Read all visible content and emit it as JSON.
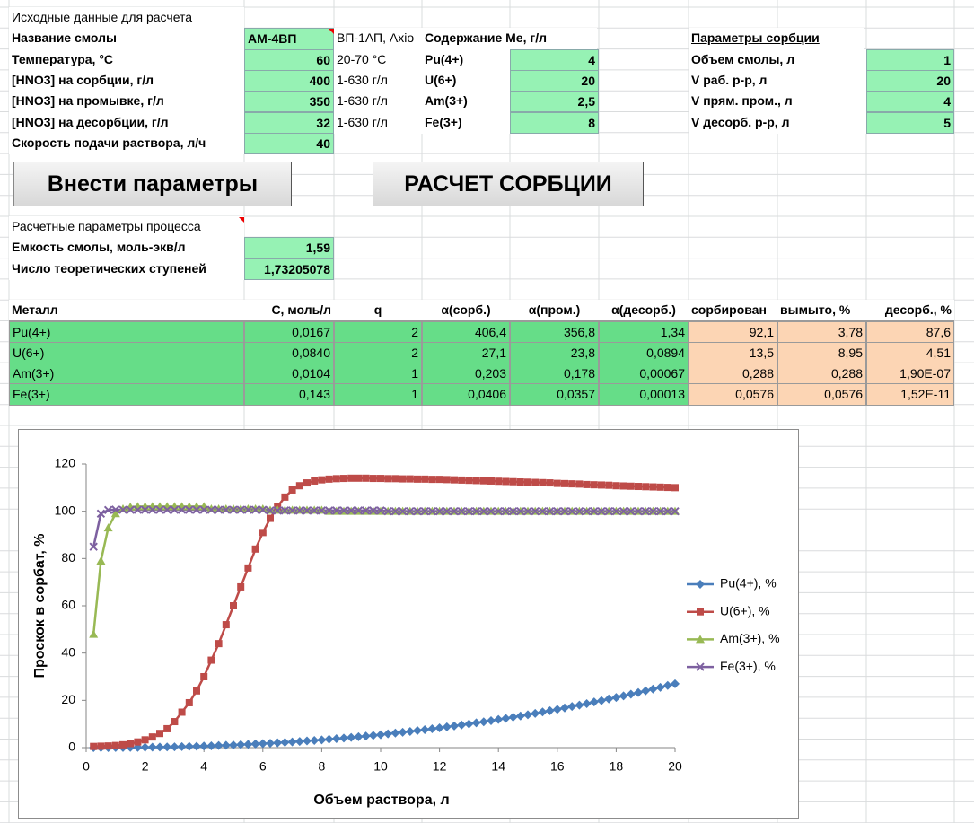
{
  "input": {
    "title": "Исходные данные для расчета",
    "rows": [
      {
        "label": "Название смолы",
        "value": "АМ-4ВП",
        "note": "ВП-1АП, Axio"
      },
      {
        "label": "Температура, °C",
        "value": "60",
        "note": "20-70 °C"
      },
      {
        "label": "[HNO3] на сорбции, г/л",
        "value": "400",
        "note": "1-630 г/л"
      },
      {
        "label": "[HNO3] на промывке, г/л",
        "value": "350",
        "note": "1-630 г/л"
      },
      {
        "label": "[HNO3] на десорбции, г/л",
        "value": "32",
        "note": "1-630 г/л"
      },
      {
        "label": "Скорость подачи раствора, л/ч",
        "value": "40"
      }
    ]
  },
  "content": {
    "title": "Содержание Me, г/л",
    "rows": [
      {
        "label": "Pu(4+)",
        "value": "4"
      },
      {
        "label": "U(6+)",
        "value": "20"
      },
      {
        "label": "Am(3+)",
        "value": "2,5"
      },
      {
        "label": "Fe(3+)",
        "value": "8"
      }
    ]
  },
  "sorption": {
    "title": "Параметры сорбции",
    "rows": [
      {
        "label": "Объем смолы, л",
        "value": "1"
      },
      {
        "label": "V раб. р-р, л",
        "value": "20"
      },
      {
        "label": "V прям. пром., л",
        "value": "4"
      },
      {
        "label": "V десорб. р-р, л",
        "value": "5"
      }
    ]
  },
  "buttons": [
    "Внести параметры",
    "РАСЧЕТ СОРБЦИИ"
  ],
  "calc": {
    "title": "Расчетные параметры процесса",
    "rows": [
      {
        "label": "Емкость смолы, моль-экв/л",
        "value": "1,59"
      },
      {
        "label": "Число теоретических ступеней",
        "value": "1,73205078"
      }
    ]
  },
  "table": {
    "headers": [
      "Металл",
      "С, моль/л",
      "q",
      "α(сорб.)",
      "α(пром.)",
      "α(десорб.)",
      "сорбирован",
      "вымыто, %",
      "десорб., %"
    ],
    "rows": [
      [
        "Pu(4+)",
        "0,0167",
        "2",
        "406,4",
        "356,8",
        "1,34",
        "92,1",
        "3,78",
        "87,6"
      ],
      [
        "U(6+)",
        "0,0840",
        "2",
        "27,1",
        "23,8",
        "0,0894",
        "13,5",
        "8,95",
        "4,51"
      ],
      [
        "Am(3+)",
        "0,0104",
        "1",
        "0,203",
        "0,178",
        "0,00067",
        "0,288",
        "0,288",
        "1,90E-07"
      ],
      [
        "Fe(3+)",
        "0,143",
        "1",
        "0,0406",
        "0,0357",
        "0,00013",
        "0,0576",
        "0,0576",
        "1,52E-11"
      ]
    ]
  },
  "chart_data": {
    "type": "line",
    "x_label": "Объем раствора, л",
    "y_label": "Проскок в сорбат, %",
    "xlim": [
      0,
      20
    ],
    "xticks": [
      0,
      2,
      4,
      6,
      8,
      10,
      12,
      14,
      16,
      18,
      20
    ],
    "ylim": [
      0,
      120
    ],
    "yticks": [
      0,
      20,
      40,
      60,
      80,
      100,
      120
    ],
    "grid": false,
    "legend": "right",
    "x": [
      0.25,
      0.5,
      0.75,
      1,
      1.25,
      1.5,
      1.75,
      2,
      2.25,
      2.5,
      2.75,
      3,
      3.25,
      3.5,
      3.75,
      4,
      4.25,
      4.5,
      4.75,
      5,
      5.25,
      5.5,
      5.75,
      6,
      6.25,
      6.5,
      6.75,
      7,
      7.25,
      7.5,
      7.75,
      8,
      8.25,
      8.5,
      8.75,
      9,
      9.25,
      9.5,
      9.75,
      10,
      10.25,
      10.5,
      10.75,
      11,
      11.25,
      11.5,
      11.75,
      12,
      12.25,
      12.5,
      12.75,
      13,
      13.25,
      13.5,
      13.75,
      14,
      14.25,
      14.5,
      14.75,
      15,
      15.25,
      15.5,
      15.75,
      16,
      16.25,
      16.5,
      16.75,
      17,
      17.25,
      17.5,
      17.75,
      18,
      18.25,
      18.5,
      18.75,
      19,
      19.25,
      19.5,
      19.75,
      20
    ],
    "series": [
      {
        "name": "Pu(4+), %",
        "color": "#4a7ebb",
        "marker": "diamond",
        "values": [
          0,
          0.01,
          0.02,
          0.03,
          0.05,
          0.08,
          0.11,
          0.14,
          0.19,
          0.24,
          0.29,
          0.34,
          0.42,
          0.5,
          0.59,
          0.67,
          0.78,
          0.89,
          1,
          1.11,
          1.26,
          1.4,
          1.55,
          1.69,
          1.87,
          2.05,
          2.23,
          2.41,
          2.63,
          2.85,
          3.06,
          3.28,
          3.54,
          3.79,
          4.05,
          4.3,
          4.6,
          4.89,
          5.19,
          5.48,
          5.82,
          6.16,
          6.49,
          6.83,
          7.21,
          7.59,
          7.96,
          8.34,
          8.76,
          9.17,
          9.59,
          10,
          10.5,
          10.9,
          11.4,
          11.9,
          12.4,
          12.9,
          13.4,
          13.9,
          14.5,
          15.1,
          15.6,
          16.2,
          16.8,
          17.4,
          18,
          18.6,
          19.3,
          19.9,
          20.6,
          21.2,
          21.9,
          22.6,
          23.3,
          24,
          24.8,
          25.5,
          26.3,
          27
        ]
      },
      {
        "name": "U(6+), %",
        "color": "#be4b48",
        "marker": "square",
        "values": [
          0.5,
          0.6,
          0.7,
          0.9,
          1.2,
          1.7,
          2.4,
          3.3,
          4.5,
          6,
          8,
          11,
          15,
          19,
          24,
          30,
          37,
          44,
          52,
          60,
          68,
          76,
          84,
          91,
          97,
          102,
          106,
          109,
          110.8,
          112,
          112.8,
          113.3,
          113.6,
          113.8,
          113.9,
          114,
          114,
          114,
          113.9,
          113.9,
          113.8,
          113.8,
          113.7,
          113.7,
          113.6,
          113.6,
          113.5,
          113.5,
          113.4,
          113.3,
          113.2,
          113.1,
          113,
          112.9,
          112.8,
          112.7,
          112.6,
          112.5,
          112.4,
          112.3,
          112.2,
          112.1,
          112,
          111.8,
          111.7,
          111.6,
          111.5,
          111.3,
          111.2,
          111.1,
          111,
          110.8,
          110.7,
          110.6,
          110.5,
          110.4,
          110.3,
          110.2,
          110.1,
          110
        ]
      },
      {
        "name": "Am(3+), %",
        "color": "#98b954",
        "marker": "triangle",
        "values": [
          48,
          79,
          93,
          99,
          101,
          101.8,
          102,
          102,
          102,
          102,
          102,
          102,
          102,
          102,
          102,
          102,
          101,
          101,
          101,
          101,
          101,
          101,
          101,
          101,
          100.5,
          100.5,
          100.5,
          100.5,
          100.5,
          100.5,
          100.5,
          100.5,
          100,
          100,
          100,
          100,
          100,
          100,
          100,
          100,
          100,
          100,
          100,
          100,
          100,
          100,
          100,
          100,
          100,
          100,
          100,
          100,
          100,
          100,
          100,
          100,
          100,
          100,
          100,
          100,
          100,
          100,
          100,
          100,
          100,
          100,
          100,
          100,
          100,
          100,
          100,
          100,
          100,
          100,
          100,
          100,
          100,
          100,
          100,
          100
        ]
      },
      {
        "name": "Fe(3+), %",
        "color": "#7d60a0",
        "marker": "x",
        "values": [
          85,
          99,
          100.5,
          100.7,
          100.6,
          100.6,
          100.6,
          100.6,
          100.6,
          100.6,
          100.6,
          100.6,
          100.6,
          100.6,
          100.6,
          100.6,
          100.6,
          100.6,
          100.6,
          100.6,
          100.6,
          100.6,
          100.6,
          100.6,
          100.3,
          100.3,
          100.3,
          100.3,
          100.3,
          100.3,
          100.3,
          100.3,
          100.3,
          100.3,
          100.3,
          100.3,
          100.3,
          100.3,
          100.3,
          100.3,
          100,
          100,
          100,
          100,
          100,
          100,
          100,
          100,
          100,
          100,
          100,
          100,
          100,
          100,
          100,
          100,
          100,
          100,
          100,
          100,
          100,
          100,
          100,
          100,
          100,
          100,
          100,
          100,
          100,
          100,
          100,
          100,
          100,
          100,
          100,
          100,
          100,
          100,
          100,
          100
        ]
      }
    ]
  }
}
